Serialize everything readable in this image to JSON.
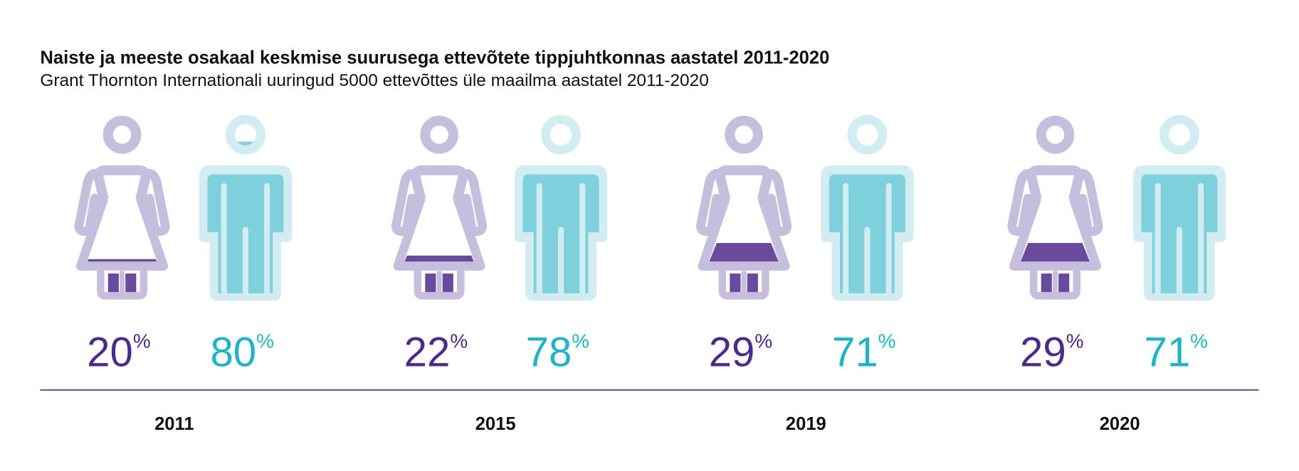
{
  "chart_data": {
    "type": "pictogram",
    "title": "Naiste ja meeste osakaal keskmise suurusega ettevõtete tippjuhtkonnas aastatel 2011-2020",
    "subtitle": "Grant Thornton Internationali uuringud 5000 ettevõttes üle maailma aastatel 2011-2020",
    "unit": "%",
    "categories": [
      "2011",
      "2015",
      "2019",
      "2020"
    ],
    "series": [
      {
        "name": "women",
        "values": [
          20,
          22,
          29,
          29
        ]
      },
      {
        "name": "men",
        "values": [
          80,
          78,
          71,
          71
        ]
      }
    ],
    "colors": {
      "women_outline": "#c6bedd",
      "women_fill": "#6a4a9c",
      "women_text": "#4a2a8a",
      "men_outline": "#d2edf2",
      "men_fill": "#7dd0dc",
      "men_text": "#1db4c8",
      "axis_line": "#5b3a94"
    }
  }
}
